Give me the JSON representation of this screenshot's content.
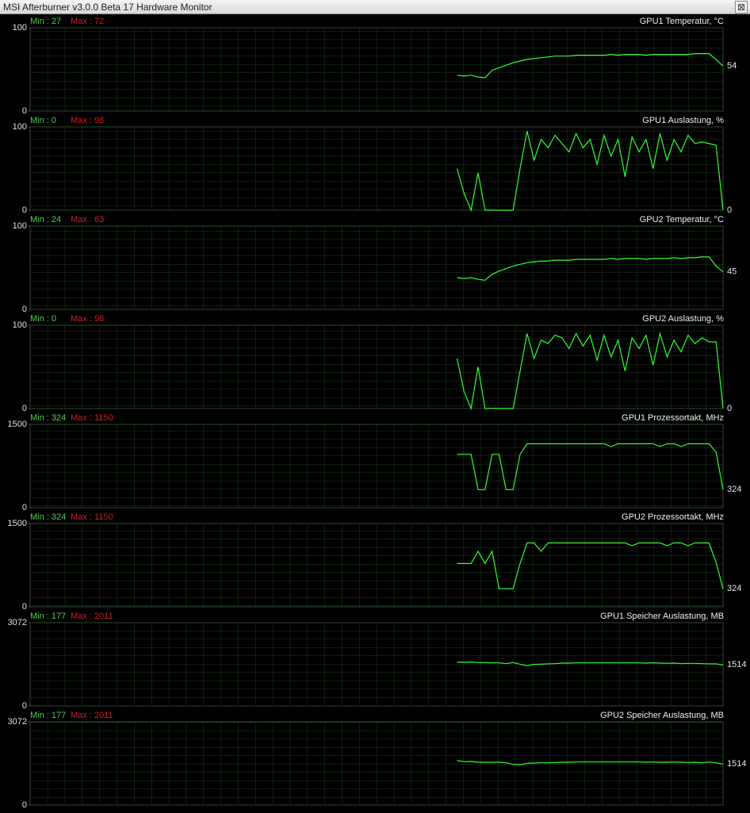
{
  "window": {
    "title": "MSI Afterburner v3.0.0 Beta 17 Hardware Monitor",
    "close": "⊠"
  },
  "chart_data": [
    {
      "type": "line",
      "title": "GPU1 Temperatur, °C",
      "min_label": "Min : 27",
      "max_label": "Max : 72",
      "ylim": [
        0,
        100
      ],
      "yticks": [
        0,
        100
      ],
      "current": 54,
      "color": "#33ff33",
      "values": [
        null,
        null,
        null,
        null,
        null,
        null,
        null,
        null,
        null,
        null,
        null,
        null,
        null,
        null,
        null,
        null,
        null,
        null,
        null,
        null,
        null,
        null,
        null,
        null,
        null,
        null,
        null,
        null,
        null,
        null,
        null,
        null,
        null,
        null,
        null,
        null,
        null,
        null,
        null,
        null,
        null,
        null,
        null,
        null,
        null,
        null,
        null,
        null,
        null,
        null,
        null,
        null,
        null,
        null,
        null,
        null,
        null,
        null,
        null,
        null,
        null,
        43,
        42,
        43,
        41,
        40,
        49,
        52,
        55,
        58,
        60,
        62,
        63,
        64,
        65,
        66,
        66,
        66,
        67,
        67,
        67,
        67,
        67,
        68,
        67,
        68,
        68,
        68,
        67,
        68,
        68,
        68,
        68,
        68,
        68,
        69,
        69,
        69,
        62,
        54
      ]
    },
    {
      "type": "line",
      "title": "GPU1 Auslastung, %",
      "min_label": "Min : 0",
      "max_label": "Max : 98",
      "ylim": [
        0,
        100
      ],
      "yticks": [
        0,
        100
      ],
      "current": 0,
      "color": "#33ff33",
      "values": [
        null,
        null,
        null,
        null,
        null,
        null,
        null,
        null,
        null,
        null,
        null,
        null,
        null,
        null,
        null,
        null,
        null,
        null,
        null,
        null,
        null,
        null,
        null,
        null,
        null,
        null,
        null,
        null,
        null,
        null,
        null,
        null,
        null,
        null,
        null,
        null,
        null,
        null,
        null,
        null,
        null,
        null,
        null,
        null,
        null,
        null,
        null,
        null,
        null,
        null,
        null,
        null,
        null,
        null,
        null,
        null,
        null,
        null,
        null,
        null,
        null,
        50,
        20,
        0,
        45,
        0,
        0,
        0,
        0,
        0,
        50,
        95,
        60,
        85,
        75,
        90,
        80,
        70,
        92,
        75,
        85,
        55,
        90,
        65,
        85,
        40,
        88,
        70,
        85,
        50,
        92,
        60,
        85,
        70,
        90,
        80,
        82,
        80,
        78,
        0
      ]
    },
    {
      "type": "line",
      "title": "GPU2 Temperatur, °C",
      "min_label": "Min : 24",
      "max_label": "Max : 63",
      "ylim": [
        0,
        100
      ],
      "yticks": [
        0,
        100
      ],
      "current": 45,
      "color": "#33ff33",
      "values": [
        null,
        null,
        null,
        null,
        null,
        null,
        null,
        null,
        null,
        null,
        null,
        null,
        null,
        null,
        null,
        null,
        null,
        null,
        null,
        null,
        null,
        null,
        null,
        null,
        null,
        null,
        null,
        null,
        null,
        null,
        null,
        null,
        null,
        null,
        null,
        null,
        null,
        null,
        null,
        null,
        null,
        null,
        null,
        null,
        null,
        null,
        null,
        null,
        null,
        null,
        null,
        null,
        null,
        null,
        null,
        null,
        null,
        null,
        null,
        null,
        null,
        38,
        37,
        38,
        36,
        35,
        42,
        46,
        49,
        52,
        54,
        56,
        57,
        58,
        58,
        59,
        59,
        59,
        60,
        60,
        60,
        60,
        60,
        61,
        60,
        61,
        61,
        61,
        60,
        61,
        61,
        61,
        62,
        61,
        62,
        62,
        63,
        63,
        52,
        45
      ]
    },
    {
      "type": "line",
      "title": "GPU2 Auslastung, %",
      "min_label": "Min : 0",
      "max_label": "Max : 98",
      "ylim": [
        0,
        100
      ],
      "yticks": [
        0,
        100
      ],
      "current": 0,
      "color": "#33ff33",
      "values": [
        null,
        null,
        null,
        null,
        null,
        null,
        null,
        null,
        null,
        null,
        null,
        null,
        null,
        null,
        null,
        null,
        null,
        null,
        null,
        null,
        null,
        null,
        null,
        null,
        null,
        null,
        null,
        null,
        null,
        null,
        null,
        null,
        null,
        null,
        null,
        null,
        null,
        null,
        null,
        null,
        null,
        null,
        null,
        null,
        null,
        null,
        null,
        null,
        null,
        null,
        null,
        null,
        null,
        null,
        null,
        null,
        null,
        null,
        null,
        null,
        null,
        60,
        20,
        0,
        50,
        0,
        0,
        0,
        0,
        0,
        45,
        90,
        60,
        82,
        78,
        88,
        85,
        72,
        90,
        75,
        88,
        58,
        88,
        62,
        82,
        45,
        85,
        72,
        88,
        52,
        90,
        62,
        82,
        68,
        88,
        78,
        85,
        80,
        80,
        0
      ]
    },
    {
      "type": "line",
      "title": "GPU1 Prozessortakt, MHz",
      "min_label": "Min : 324",
      "max_label": "Max : 1150",
      "ylim": [
        0,
        1500
      ],
      "yticks": [
        0,
        1500
      ],
      "current": 324,
      "color": "#33ff33",
      "values": [
        null,
        null,
        null,
        null,
        null,
        null,
        null,
        null,
        null,
        null,
        null,
        null,
        null,
        null,
        null,
        null,
        null,
        null,
        null,
        null,
        null,
        null,
        null,
        null,
        null,
        null,
        null,
        null,
        null,
        null,
        null,
        null,
        null,
        null,
        null,
        null,
        null,
        null,
        null,
        null,
        null,
        null,
        null,
        null,
        null,
        null,
        null,
        null,
        null,
        null,
        null,
        null,
        null,
        null,
        null,
        null,
        null,
        null,
        null,
        null,
        null,
        960,
        960,
        960,
        324,
        324,
        960,
        960,
        324,
        324,
        960,
        1150,
        1150,
        1150,
        1150,
        1150,
        1150,
        1150,
        1150,
        1150,
        1150,
        1150,
        1150,
        1100,
        1150,
        1150,
        1150,
        1150,
        1150,
        1150,
        1100,
        1150,
        1150,
        1100,
        1150,
        1150,
        1150,
        1150,
        1000,
        324
      ]
    },
    {
      "type": "line",
      "title": "GPU2 Prozessortakt, MHz",
      "min_label": "Min : 324",
      "max_label": "Max : 1150",
      "ylim": [
        0,
        1500
      ],
      "yticks": [
        0,
        1500
      ],
      "current": 324,
      "color": "#33ff33",
      "values": [
        null,
        null,
        null,
        null,
        null,
        null,
        null,
        null,
        null,
        null,
        null,
        null,
        null,
        null,
        null,
        null,
        null,
        null,
        null,
        null,
        null,
        null,
        null,
        null,
        null,
        null,
        null,
        null,
        null,
        null,
        null,
        null,
        null,
        null,
        null,
        null,
        null,
        null,
        null,
        null,
        null,
        null,
        null,
        null,
        null,
        null,
        null,
        null,
        null,
        null,
        null,
        null,
        null,
        null,
        null,
        null,
        null,
        null,
        null,
        null,
        null,
        780,
        780,
        780,
        1000,
        780,
        1000,
        324,
        324,
        324,
        780,
        1150,
        1150,
        1000,
        1150,
        1150,
        1150,
        1150,
        1150,
        1150,
        1150,
        1150,
        1150,
        1150,
        1150,
        1150,
        1100,
        1150,
        1150,
        1150,
        1150,
        1100,
        1150,
        1150,
        1100,
        1150,
        1150,
        1150,
        800,
        324
      ]
    },
    {
      "type": "line",
      "title": "GPU1 Speicher Auslastung, MB",
      "min_label": "Min : 177",
      "max_label": "Max : 2011",
      "ylim": [
        0,
        3072
      ],
      "yticks": [
        0,
        3072
      ],
      "current": 1514,
      "color": "#33ff33",
      "values": [
        null,
        null,
        null,
        null,
        null,
        null,
        null,
        null,
        null,
        null,
        null,
        null,
        null,
        null,
        null,
        null,
        null,
        null,
        null,
        null,
        null,
        null,
        null,
        null,
        null,
        null,
        null,
        null,
        null,
        null,
        null,
        null,
        null,
        null,
        null,
        null,
        null,
        null,
        null,
        null,
        null,
        null,
        null,
        null,
        null,
        null,
        null,
        null,
        null,
        null,
        null,
        null,
        null,
        null,
        null,
        null,
        null,
        null,
        null,
        null,
        null,
        1620,
        1610,
        1620,
        1600,
        1600,
        1590,
        1590,
        1560,
        1600,
        1540,
        1480,
        1530,
        1540,
        1550,
        1560,
        1580,
        1580,
        1590,
        1590,
        1590,
        1590,
        1590,
        1590,
        1590,
        1590,
        1590,
        1590,
        1580,
        1590,
        1580,
        1570,
        1580,
        1560,
        1570,
        1570,
        1560,
        1550,
        1550,
        1514
      ]
    },
    {
      "type": "line",
      "title": "GPU2 Speicher Auslastung, MB",
      "min_label": "Min : 177",
      "max_label": "Max : 2011",
      "ylim": [
        0,
        3072
      ],
      "yticks": [
        0,
        3072
      ],
      "current": 1514,
      "color": "#33ff33",
      "values": [
        null,
        null,
        null,
        null,
        null,
        null,
        null,
        null,
        null,
        null,
        null,
        null,
        null,
        null,
        null,
        null,
        null,
        null,
        null,
        null,
        null,
        null,
        null,
        null,
        null,
        null,
        null,
        null,
        null,
        null,
        null,
        null,
        null,
        null,
        null,
        null,
        null,
        null,
        null,
        null,
        null,
        null,
        null,
        null,
        null,
        null,
        null,
        null,
        null,
        null,
        null,
        null,
        null,
        null,
        null,
        null,
        null,
        null,
        null,
        null,
        null,
        1640,
        1600,
        1610,
        1580,
        1580,
        1580,
        1580,
        1560,
        1500,
        1490,
        1540,
        1550,
        1560,
        1560,
        1570,
        1580,
        1580,
        1590,
        1590,
        1590,
        1590,
        1590,
        1590,
        1590,
        1590,
        1590,
        1590,
        1580,
        1590,
        1580,
        1580,
        1590,
        1580,
        1570,
        1580,
        1560,
        1590,
        1560,
        1514
      ]
    }
  ]
}
